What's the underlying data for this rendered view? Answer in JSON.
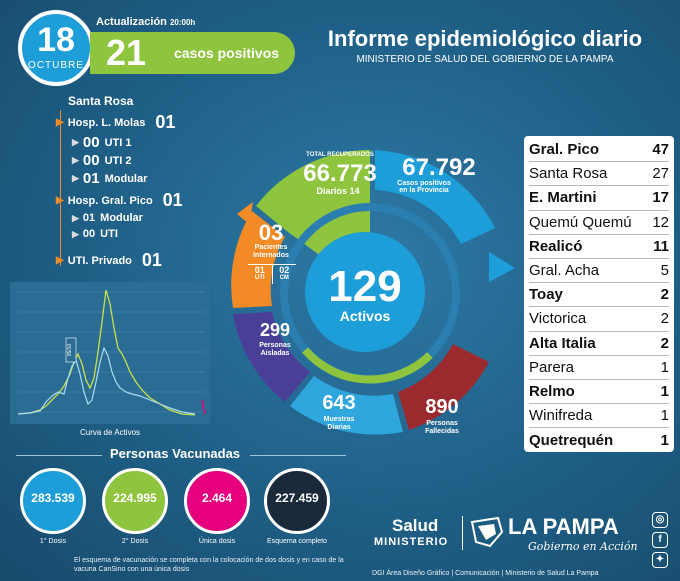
{
  "header": {
    "day": "18",
    "month": "OCTUBRE",
    "update_label": "Actualización",
    "update_time": "20:00h",
    "positive_count": "21",
    "positive_label": "casos positivos",
    "title": "Informe epidemiológico diario",
    "subtitle": "MINISTERIO DE SALUD DEL GOBIERNO DE LA PAMPA"
  },
  "hospitals": {
    "city": "Santa Rosa",
    "molas": {
      "name": "Hosp. L. Molas",
      "total": "01",
      "items": [
        {
          "num": "00",
          "label": "UTI 1"
        },
        {
          "num": "00",
          "label": "UTI 2"
        },
        {
          "num": "01",
          "label": "Modular"
        }
      ]
    },
    "pico": {
      "name": "Hosp. Gral. Pico",
      "total": "01",
      "items": [
        {
          "num": "01",
          "label": "Modular"
        },
        {
          "num": "00",
          "label": "UTI"
        }
      ]
    },
    "privado": {
      "name": "UTI. Privado",
      "total": "01"
    }
  },
  "active_chart": {
    "caption": "Curva de Activos",
    "marker": "05/10"
  },
  "stats": {
    "recovered_label": "TOTAL RECUPERADOS",
    "recovered": "66.773",
    "daily_label": "Diarios",
    "daily": "14",
    "province_cases": "67.792",
    "province_label_1": "Casos positivos",
    "province_label_2": "en la Provincia",
    "hospitalized": "03",
    "hospitalized_label_1": "Pacientes",
    "hospitalized_label_2": "Internados",
    "uti_num": "01",
    "uti_label": "UTI",
    "cm_num": "02",
    "cm_label": "CM",
    "isolated": "299",
    "isolated_label_1": "Personas",
    "isolated_label_2": "Aisladas",
    "samples": "643",
    "samples_label_1": "Muestras",
    "samples_label_2": "Diarias",
    "deceased": "890",
    "deceased_label_1": "Personas",
    "deceased_label_2": "Fallecidas",
    "active": "129",
    "active_label": "Activos"
  },
  "cities": [
    {
      "name": "Gral. Pico",
      "count": "47",
      "bold": true
    },
    {
      "name": "Santa Rosa",
      "count": "27",
      "bold": false
    },
    {
      "name": "E. Martini",
      "count": "17",
      "bold": true
    },
    {
      "name": "Quemú Quemú",
      "count": "12",
      "bold": false
    },
    {
      "name": "Realicó",
      "count": "11",
      "bold": true
    },
    {
      "name": "Gral. Acha",
      "count": "5",
      "bold": false
    },
    {
      "name": "Toay",
      "count": "2",
      "bold": true
    },
    {
      "name": "Victorica",
      "count": "2",
      "bold": false
    },
    {
      "name": "Alta Italia",
      "count": "2",
      "bold": true
    },
    {
      "name": "Parera",
      "count": "1",
      "bold": false
    },
    {
      "name": "Relmo",
      "count": "1",
      "bold": true
    },
    {
      "name": "Winifreda",
      "count": "1",
      "bold": false
    },
    {
      "name": "Quetrequén",
      "count": "1",
      "bold": true
    }
  ],
  "vaccination": {
    "title": "Personas Vacunadas",
    "items": [
      {
        "value": "283.539",
        "caption": "1° Dosis",
        "color": "#1e9ed8"
      },
      {
        "value": "224.995",
        "caption": "2° Dosis",
        "color": "#8fc43f"
      },
      {
        "value": "2.464",
        "caption": "Única dosis",
        "color": "#e6007e"
      },
      {
        "value": "227.459",
        "caption": "Esquema completo",
        "color": "#1b2a3a"
      }
    ],
    "note": "El esquema de vacunación se completa con la colocación de dos dosis y en caso de la vacuna CanSino con una única dosis"
  },
  "brand": {
    "salud": "Salud",
    "ministerio": "MINISTERIO",
    "name": "LA PAMPA",
    "sub": "Gobierno en Acción",
    "credit": "DGI Área Diseño Gráfico  |  Comunicación  |  Ministerio de Salud La Pampa"
  },
  "colors": {
    "background": "#1f5f86",
    "blue": "#1e9ed8",
    "green": "#8fc43f",
    "orange": "#f28b25",
    "purple": "#4a3f96",
    "red": "#9b2a2f"
  }
}
